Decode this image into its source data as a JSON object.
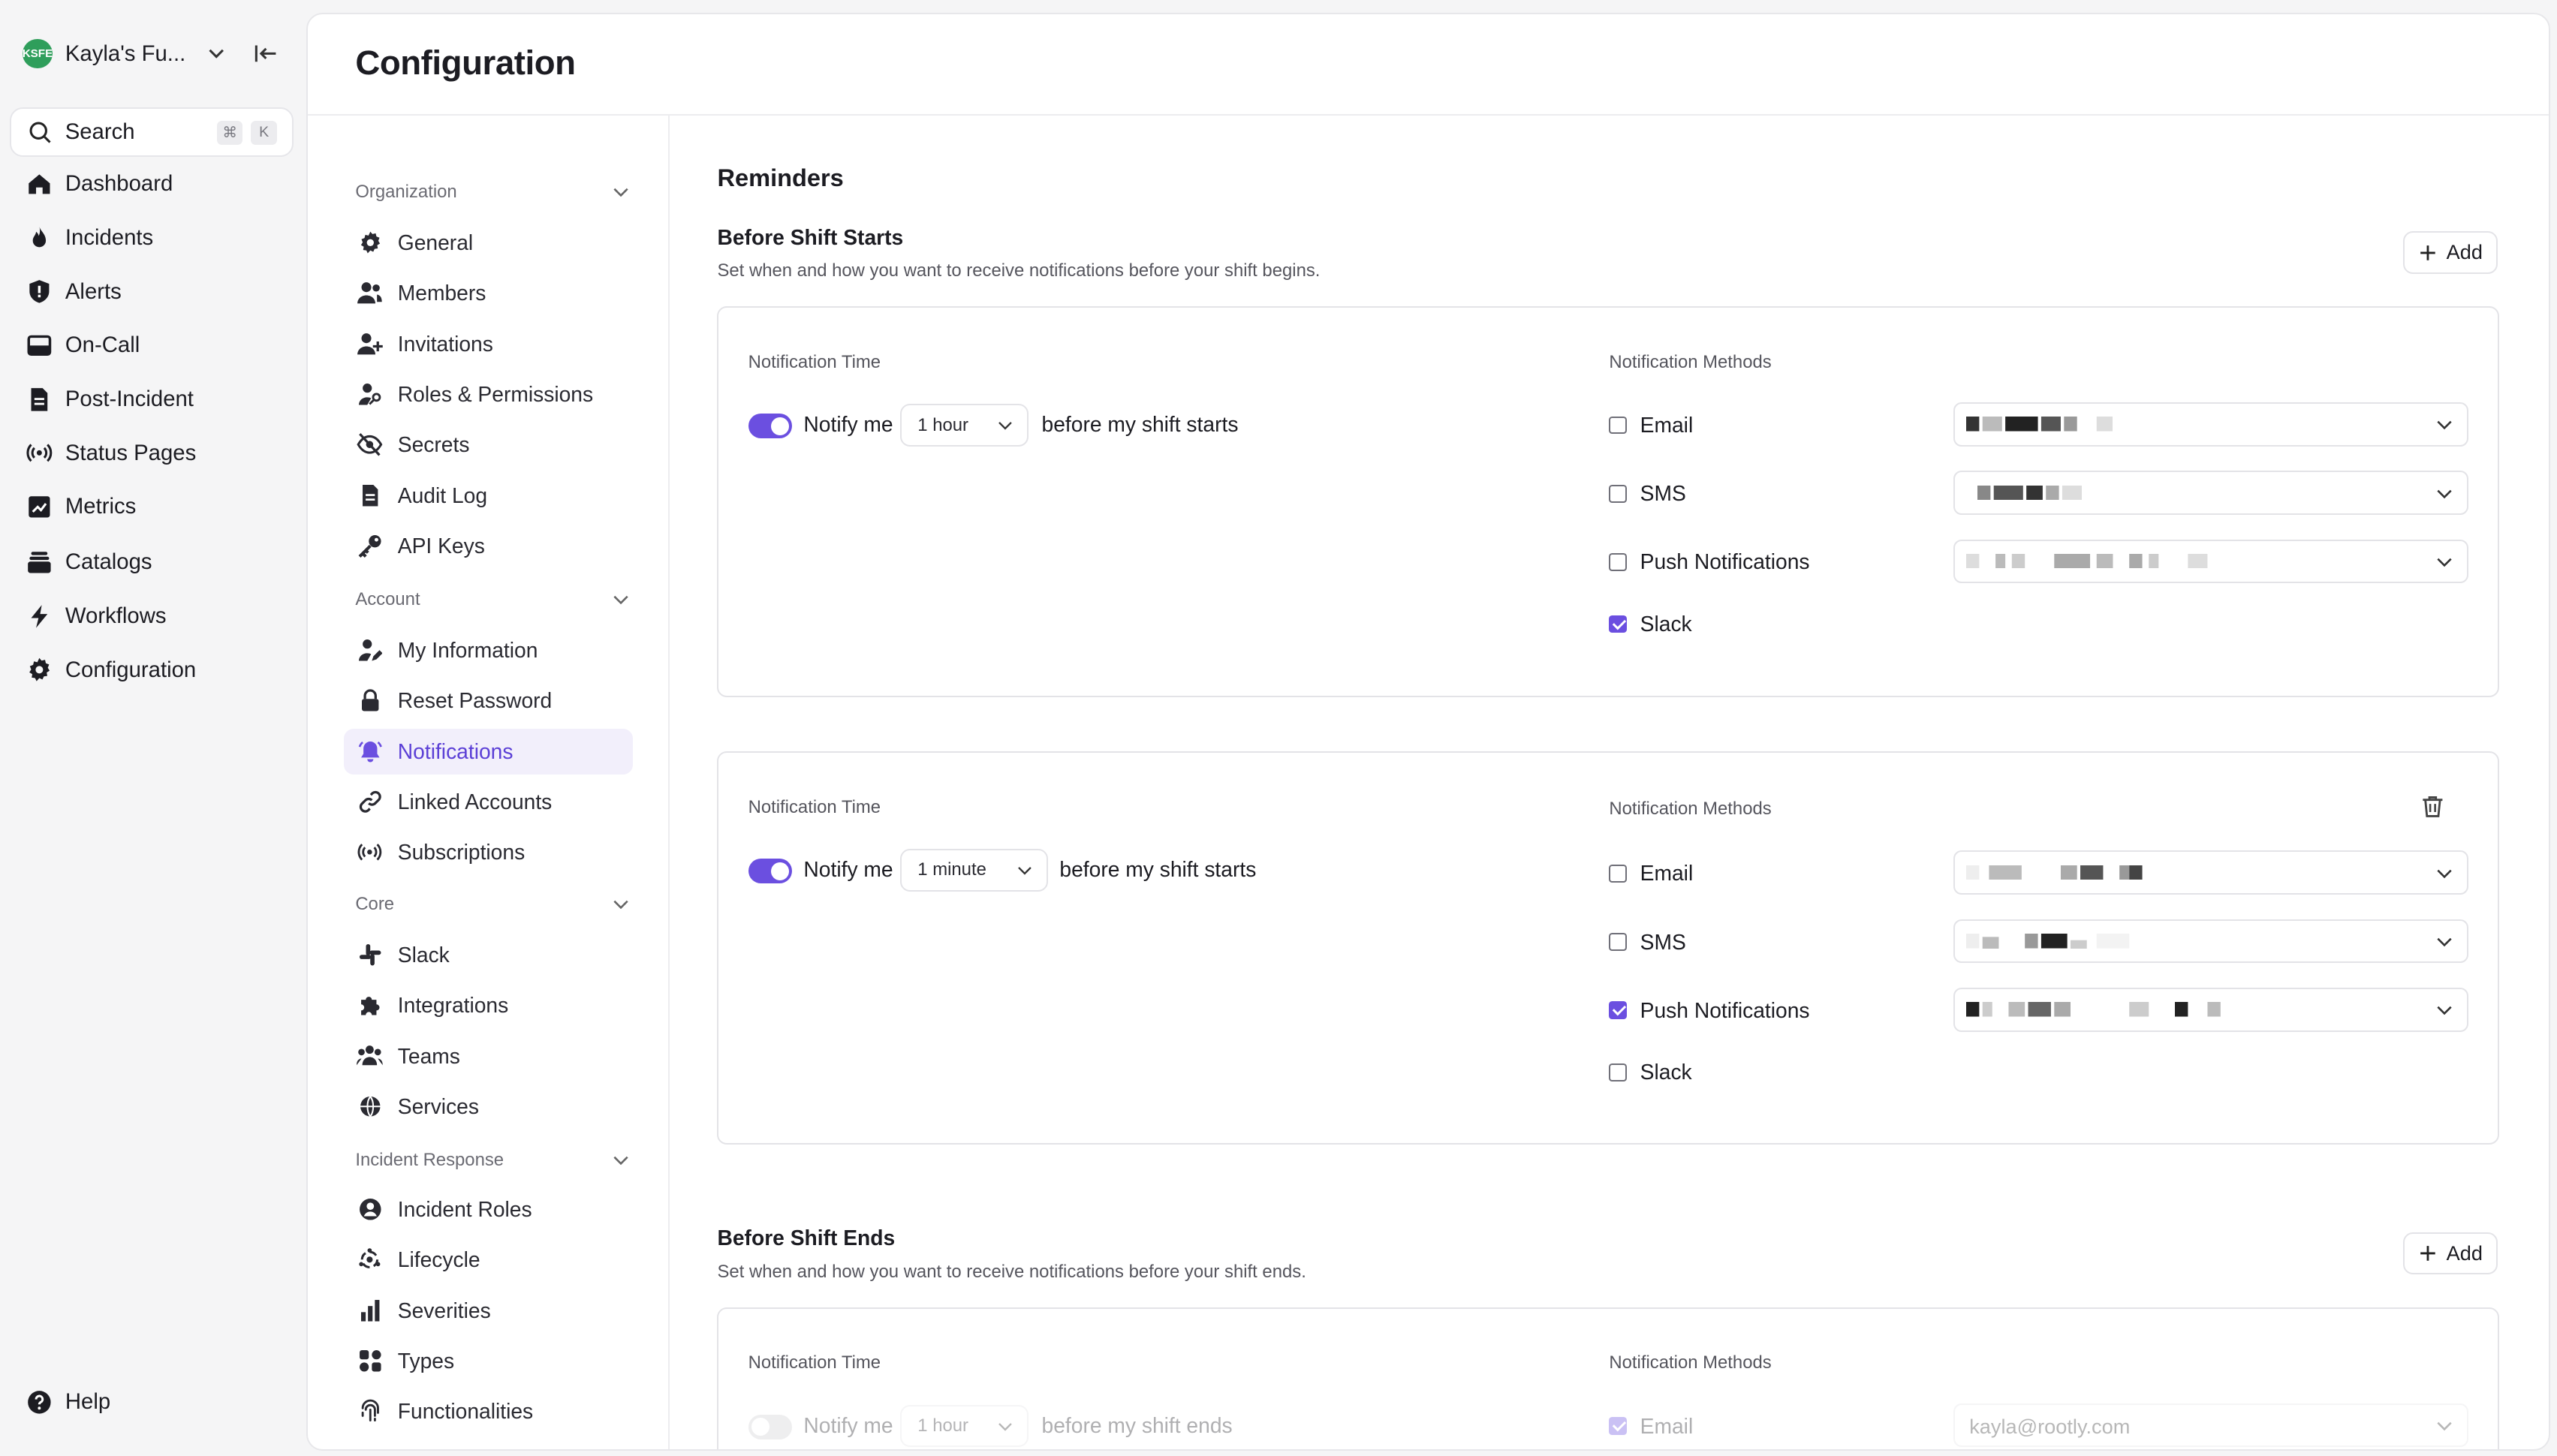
{
  "org": {
    "initials": "KSFE",
    "name": "Kayla's Fu..."
  },
  "search": {
    "label": "Search",
    "shortcut_mod": "⌘",
    "shortcut_key": "K"
  },
  "main_nav": [
    {
      "label": "Dashboard",
      "icon": "home-icon"
    },
    {
      "label": "Incidents",
      "icon": "fire-icon"
    },
    {
      "label": "Alerts",
      "icon": "shield-alert-icon"
    },
    {
      "label": "On-Call",
      "icon": "calendar-board-icon"
    },
    {
      "label": "Post-Incident",
      "icon": "document-icon"
    },
    {
      "label": "Status Pages",
      "icon": "broadcast-icon"
    },
    {
      "label": "Metrics",
      "icon": "chart-line-icon"
    },
    {
      "label": "Catalogs",
      "icon": "stack-icon"
    },
    {
      "label": "Workflows",
      "icon": "bolt-icon"
    },
    {
      "label": "Configuration",
      "icon": "gear-icon"
    }
  ],
  "help": {
    "label": "Help"
  },
  "page": {
    "title": "Configuration"
  },
  "settings_nav": {
    "sections": [
      {
        "title": "Organization",
        "items": [
          {
            "label": "General",
            "icon": "gear-icon"
          },
          {
            "label": "Members",
            "icon": "users-icon"
          },
          {
            "label": "Invitations",
            "icon": "user-plus-icon"
          },
          {
            "label": "Roles & Permissions",
            "icon": "user-key-icon"
          },
          {
            "label": "Secrets",
            "icon": "eye-slash-icon"
          },
          {
            "label": "Audit Log",
            "icon": "file-icon"
          },
          {
            "label": "API Keys",
            "icon": "key-icon"
          }
        ]
      },
      {
        "title": "Account",
        "items": [
          {
            "label": "My Information",
            "icon": "user-edit-icon"
          },
          {
            "label": "Reset Password",
            "icon": "lock-icon"
          },
          {
            "label": "Notifications",
            "icon": "bell-icon"
          },
          {
            "label": "Linked Accounts",
            "icon": "link-icon"
          },
          {
            "label": "Subscriptions",
            "icon": "broadcast-icon"
          }
        ]
      },
      {
        "title": "Core",
        "items": [
          {
            "label": "Slack",
            "icon": "slack-icon"
          },
          {
            "label": "Integrations",
            "icon": "puzzle-icon"
          },
          {
            "label": "Teams",
            "icon": "team-icon"
          },
          {
            "label": "Services",
            "icon": "globe-icon"
          }
        ]
      },
      {
        "title": "Incident Response",
        "items": [
          {
            "label": "Incident Roles",
            "icon": "user-circle-icon"
          },
          {
            "label": "Lifecycle",
            "icon": "cycle-icon"
          },
          {
            "label": "Severities",
            "icon": "bars-icon"
          },
          {
            "label": "Types",
            "icon": "shapes-icon"
          },
          {
            "label": "Functionalities",
            "icon": "fingerprint-icon"
          }
        ]
      }
    ],
    "active": "Notifications"
  },
  "reminders": {
    "title": "Reminders",
    "notification_time_label": "Notification Time",
    "notification_methods_label": "Notification Methods",
    "notify_me": "Notify me",
    "add_label": "Add",
    "before_start": {
      "title": "Before Shift Starts",
      "subtitle": "Set when and how you want to receive notifications before your shift begins.",
      "suffix": "before my shift starts",
      "cards": [
        {
          "enabled": true,
          "time": "1 hour",
          "methods": [
            {
              "label": "Email",
              "checked": false
            },
            {
              "label": "SMS",
              "checked": false
            },
            {
              "label": "Push Notifications",
              "checked": false
            },
            {
              "label": "Slack",
              "checked": true
            }
          ]
        },
        {
          "enabled": true,
          "time": "1 minute",
          "methods": [
            {
              "label": "Email",
              "checked": false
            },
            {
              "label": "SMS",
              "checked": false
            },
            {
              "label": "Push Notifications",
              "checked": true
            },
            {
              "label": "Slack",
              "checked": false
            }
          ]
        }
      ]
    },
    "before_end": {
      "title": "Before Shift Ends",
      "subtitle": "Set when and how you want to receive notifications before your shift ends.",
      "suffix": "before my shift ends",
      "cards": [
        {
          "enabled": false,
          "time": "1 hour",
          "methods": [
            {
              "label": "Email",
              "checked": true,
              "contact": "kayla@rootly.com"
            }
          ]
        }
      ]
    }
  },
  "colors": {
    "accent": "#6b4fe0",
    "active_bg": "#f2effb",
    "org_avatar": "#2f9e5b"
  }
}
